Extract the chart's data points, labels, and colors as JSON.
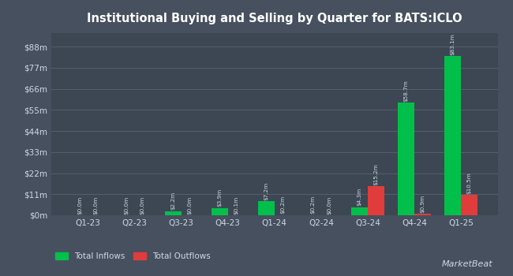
{
  "title": "Institutional Buying and Selling by Quarter for BATS:ICLO",
  "quarters": [
    "Q1-23",
    "Q2-23",
    "Q3-23",
    "Q4-23",
    "Q1-24",
    "Q2-24",
    "Q3-24",
    "Q4-24",
    "Q1-25"
  ],
  "inflows": [
    0.0,
    0.0,
    2.2,
    3.9,
    7.2,
    0.2,
    4.3,
    58.7,
    83.1
  ],
  "outflows": [
    0.0,
    0.0,
    0.0,
    0.1,
    0.2,
    0.0,
    15.2,
    0.9,
    10.5
  ],
  "inflow_labels": [
    "$0.0m",
    "$0.0m",
    "$2.2m",
    "$3.9m",
    "$7.2m",
    "$0.2m",
    "$4.3m",
    "$58.7m",
    "$83.1m"
  ],
  "outflow_labels": [
    "$0.0m",
    "$0.0m",
    "$0.0m",
    "$0.1m",
    "$0.2m",
    "$0.0m",
    "$15.2m",
    "$0.9m",
    "$10.5m"
  ],
  "yticks": [
    0,
    11,
    22,
    33,
    44,
    55,
    66,
    77,
    88
  ],
  "ytick_labels": [
    "$0m",
    "$11m",
    "$22m",
    "$33m",
    "$44m",
    "$55m",
    "$66m",
    "$77m",
    "$88m"
  ],
  "ylim": [
    0,
    95
  ],
  "bar_width": 0.35,
  "inflow_color": "#00c04b",
  "outflow_color": "#e03c3c",
  "bg_color": "#46505f",
  "plot_bg_color": "#3d4653",
  "grid_color": "#5a6270",
  "text_color": "#d0d8e8",
  "label_color": "#d0d8e8",
  "legend_inflow": "Total Inflows",
  "legend_outflow": "Total Outflows",
  "title_color": "#ffffff"
}
